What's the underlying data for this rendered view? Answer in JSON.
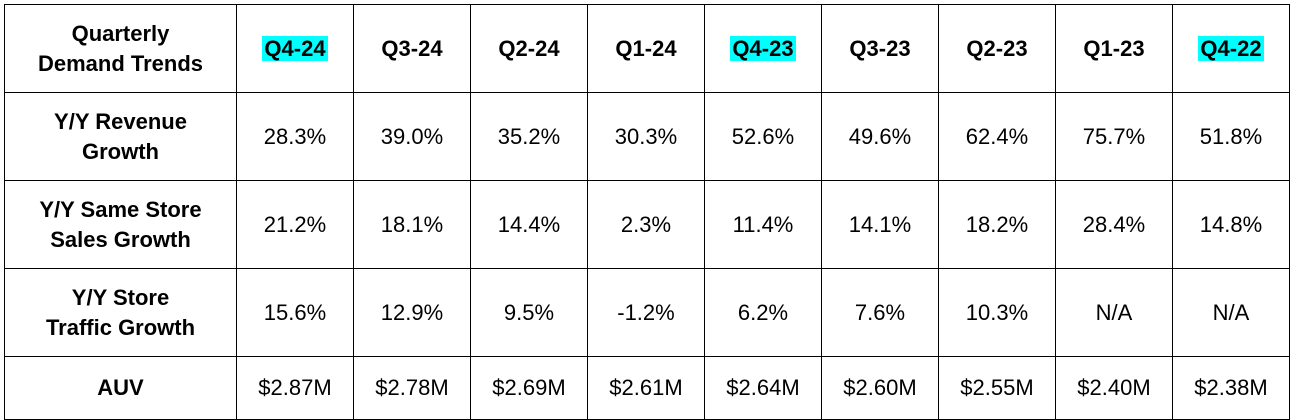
{
  "table": {
    "corner_label_line1": "Quarterly",
    "corner_label_line2": "Demand Trends",
    "highlight_color": "#00ffff",
    "columns": [
      {
        "label": "Q4-24",
        "highlighted": true
      },
      {
        "label": "Q3-24",
        "highlighted": false
      },
      {
        "label": "Q2-24",
        "highlighted": false
      },
      {
        "label": "Q1-24",
        "highlighted": false
      },
      {
        "label": "Q4-23",
        "highlighted": true
      },
      {
        "label": "Q3-23",
        "highlighted": false
      },
      {
        "label": "Q2-23",
        "highlighted": false
      },
      {
        "label": "Q1-23",
        "highlighted": false
      },
      {
        "label": "Q4-22",
        "highlighted": true
      }
    ],
    "rows": [
      {
        "label_line1": "Y/Y Revenue",
        "label_line2": "Growth",
        "values": [
          "28.3%",
          "39.0%",
          "35.2%",
          "30.3%",
          "52.6%",
          "49.6%",
          "62.4%",
          "75.7%",
          "51.8%"
        ]
      },
      {
        "label_line1": "Y/Y Same Store",
        "label_line2": "Sales Growth",
        "values": [
          "21.2%",
          "18.1%",
          "14.4%",
          "2.3%",
          "11.4%",
          "14.1%",
          "18.2%",
          "28.4%",
          "14.8%"
        ]
      },
      {
        "label_line1": "Y/Y Store",
        "label_line2": "Traffic Growth",
        "values": [
          "15.6%",
          "12.9%",
          "9.5%",
          "-1.2%",
          "6.2%",
          "7.6%",
          "10.3%",
          "N/A",
          "N/A"
        ]
      },
      {
        "label_line1": "AUV",
        "label_line2": "",
        "values": [
          "$2.87M",
          "$2.78M",
          "$2.69M",
          "$2.61M",
          "$2.64M",
          "$2.60M",
          "$2.55M",
          "$2.40M",
          "$2.38M"
        ]
      }
    ]
  }
}
